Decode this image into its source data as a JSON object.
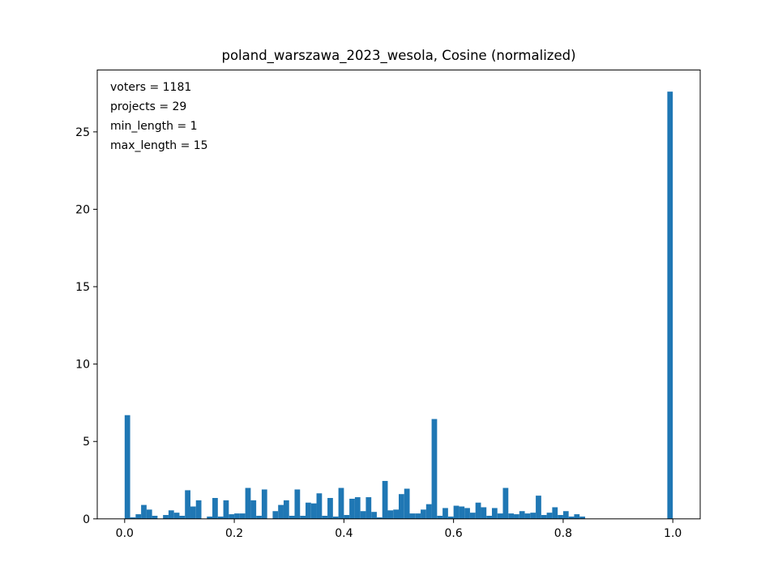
{
  "chart_data": {
    "type": "bar",
    "title": "poland_warszawa_2023_wesola, Cosine (normalized)",
    "xlabel": "",
    "ylabel": "",
    "xlim": [
      -0.05,
      1.05
    ],
    "ylim": [
      0,
      29.0
    ],
    "bin_width": 0.01,
    "bar_color": "#1f77b4",
    "grid": false,
    "legend": "none",
    "annotation": [
      "voters = 1181",
      "projects = 29",
      "min_length = 1",
      "max_length = 15"
    ],
    "x_ticks": [
      0.0,
      0.2,
      0.4,
      0.6,
      0.8,
      1.0
    ],
    "x_tick_labels": [
      "0.0",
      "0.2",
      "0.4",
      "0.6",
      "0.8",
      "1.0"
    ],
    "y_ticks": [
      0,
      5,
      10,
      15,
      20,
      25
    ],
    "y_tick_labels": [
      "0",
      "5",
      "10",
      "15",
      "20",
      "25"
    ],
    "x": [
      0.0,
      0.01,
      0.02,
      0.03,
      0.04,
      0.05,
      0.06,
      0.07,
      0.08,
      0.09,
      0.1,
      0.11,
      0.12,
      0.13,
      0.14,
      0.15,
      0.16,
      0.17,
      0.18,
      0.19,
      0.2,
      0.21,
      0.22,
      0.23,
      0.24,
      0.25,
      0.26,
      0.27,
      0.28,
      0.29,
      0.3,
      0.31,
      0.32,
      0.33,
      0.34,
      0.35,
      0.36,
      0.37,
      0.38,
      0.39,
      0.4,
      0.41,
      0.42,
      0.43,
      0.44,
      0.45,
      0.46,
      0.47,
      0.48,
      0.49,
      0.5,
      0.51,
      0.52,
      0.53,
      0.54,
      0.55,
      0.56,
      0.57,
      0.58,
      0.59,
      0.6,
      0.61,
      0.62,
      0.63,
      0.64,
      0.65,
      0.66,
      0.67,
      0.68,
      0.69,
      0.7,
      0.71,
      0.72,
      0.73,
      0.74,
      0.75,
      0.76,
      0.77,
      0.78,
      0.79,
      0.8,
      0.81,
      0.82,
      0.83,
      0.84,
      0.85,
      0.86,
      0.87,
      0.88,
      0.89,
      0.9,
      0.91,
      0.92,
      0.93,
      0.94,
      0.95,
      0.96,
      0.97,
      0.98,
      0.99
    ],
    "values": [
      6.7,
      0.1,
      0.3,
      0.9,
      0.6,
      0.2,
      0.0,
      0.25,
      0.55,
      0.4,
      0.2,
      1.85,
      0.8,
      1.2,
      0.0,
      0.15,
      1.35,
      0.15,
      1.2,
      0.3,
      0.35,
      0.35,
      2.0,
      1.2,
      0.2,
      1.9,
      0.0,
      0.5,
      0.9,
      1.2,
      0.2,
      1.9,
      0.2,
      1.05,
      1.0,
      1.65,
      0.2,
      1.35,
      0.15,
      2.0,
      0.25,
      1.3,
      1.4,
      0.5,
      1.4,
      0.45,
      0.1,
      2.45,
      0.55,
      0.6,
      1.6,
      1.95,
      0.35,
      0.35,
      0.6,
      0.95,
      6.45,
      0.2,
      0.7,
      0.15,
      0.85,
      0.8,
      0.7,
      0.4,
      1.05,
      0.75,
      0.2,
      0.7,
      0.35,
      2.0,
      0.35,
      0.3,
      0.5,
      0.35,
      0.4,
      1.5,
      0.25,
      0.4,
      0.75,
      0.25,
      0.5,
      0.15,
      0.3,
      0.15,
      0.0,
      0.0,
      0.0,
      0.0,
      0.0,
      0.0,
      0.0,
      0.0,
      0.0,
      0.0,
      0.0,
      0.0,
      0.0,
      0.0,
      0.0,
      27.6
    ]
  }
}
